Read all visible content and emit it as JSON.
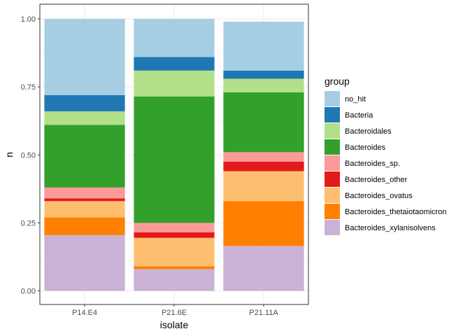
{
  "chart_data": {
    "type": "bar",
    "stacked": true,
    "xlabel": "isolate",
    "ylabel": "n",
    "ylim": [
      0,
      1
    ],
    "yticks": [
      "0.00",
      "0.25",
      "0.50",
      "0.75",
      "1.00"
    ],
    "categories": [
      "P14.E4",
      "P21.6E",
      "P21.11A"
    ],
    "grid": true,
    "legend": {
      "title": "group",
      "position": "right"
    },
    "series": [
      {
        "name": "no_hit",
        "color": "#A6CEE3",
        "values": [
          0.28,
          0.14,
          0.18
        ]
      },
      {
        "name": "Bacteria",
        "color": "#1F78B4",
        "values": [
          0.06,
          0.05,
          0.03
        ]
      },
      {
        "name": "Bacteroidales",
        "color": "#B2DF8A",
        "values": [
          0.05,
          0.095,
          0.05
        ]
      },
      {
        "name": "Bacteroides",
        "color": "#33A02C",
        "values": [
          0.23,
          0.465,
          0.22
        ]
      },
      {
        "name": "Bacteroides_sp.",
        "color": "#FB9A99",
        "values": [
          0.04,
          0.035,
          0.035
        ]
      },
      {
        "name": "Bacteroides_other",
        "color": "#E31A1C",
        "values": [
          0.01,
          0.02,
          0.035
        ]
      },
      {
        "name": "Bacteroides_ovatus",
        "color": "#FDBF6F",
        "values": [
          0.06,
          0.105,
          0.11
        ]
      },
      {
        "name": "Bacteroides_thetaiotaomicron",
        "color": "#FF7F00",
        "values": [
          0.065,
          0.01,
          0.165
        ]
      },
      {
        "name": "Bacteroides_xylanisolvens",
        "color": "#CAB2D6",
        "values": [
          0.205,
          0.08,
          0.165
        ]
      }
    ]
  }
}
